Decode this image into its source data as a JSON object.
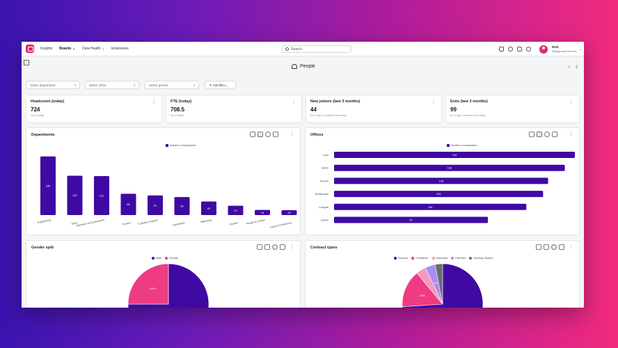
{
  "nav": {
    "items": [
      "Insights",
      "Boards",
      "Data Health",
      "Employees"
    ],
    "search_placeholder": "Search",
    "user_name": "Nick",
    "user_company": "Playground Phoenix"
  },
  "page": {
    "title": "People"
  },
  "filters": {
    "department": "Select department",
    "office": "Select office",
    "gender": "Select gender",
    "add_filter": "Add filter"
  },
  "kpis": [
    {
      "title": "Headcount (today)",
      "value": "724",
      "sub": "As of today"
    },
    {
      "title": "FTE (today)",
      "value": "708.5",
      "sub": "As of today"
    },
    {
      "title": "New joiners (last 3 months)",
      "value": "44",
      "sub": "As of last 3 months from today"
    },
    {
      "title": "Exits (last 3 months)",
      "value": "99",
      "sub": "As of last 3 months from today"
    }
  ],
  "colors": {
    "primary": "#3f0aa3",
    "female": "#ef3b82",
    "intern": "#f59ac0",
    "parttime": "#a98cf3",
    "student": "#6b6b6b",
    "brand": "#e5247a"
  },
  "chart_data": [
    {
      "type": "bar",
      "title": "Departments",
      "legend": "Number of employees",
      "categories": [
        "Engineering",
        "Sales",
        "Research & Development",
        "Product",
        "Customer Support",
        "Operations",
        "Marketing",
        "Finance",
        "People & Culture",
        "Legal & Compliance"
      ],
      "values": [
        182,
        122,
        121,
        66,
        61,
        56,
        42,
        29,
        16,
        15
      ],
      "ylim": [
        0,
        200
      ]
    },
    {
      "type": "bar",
      "orientation": "horizontal",
      "title": "Offices",
      "legend": "Number of employees",
      "categories": [
        "Lyon",
        "Berlin",
        "Munich",
        "Amsterdam",
        "Cologne",
        "Lisbon"
      ],
      "values": [
        144,
        138,
        128,
        125,
        115,
        92
      ],
      "xlim": [
        0,
        144
      ]
    },
    {
      "type": "pie",
      "title": "Gender split",
      "labels": [
        "Male",
        "Female"
      ],
      "values": [
        75,
        25
      ],
      "slice_labels": [
        "",
        "25%"
      ]
    },
    {
      "type": "pie",
      "title": "Contract types",
      "labels": [
        "Full time",
        "Freelancer",
        "Internship",
        "Part time",
        "Working Student"
      ],
      "values": [
        74,
        15,
        4,
        4,
        3
      ],
      "slice_labels": [
        "",
        "15%",
        "",
        "4%",
        ""
      ]
    }
  ]
}
